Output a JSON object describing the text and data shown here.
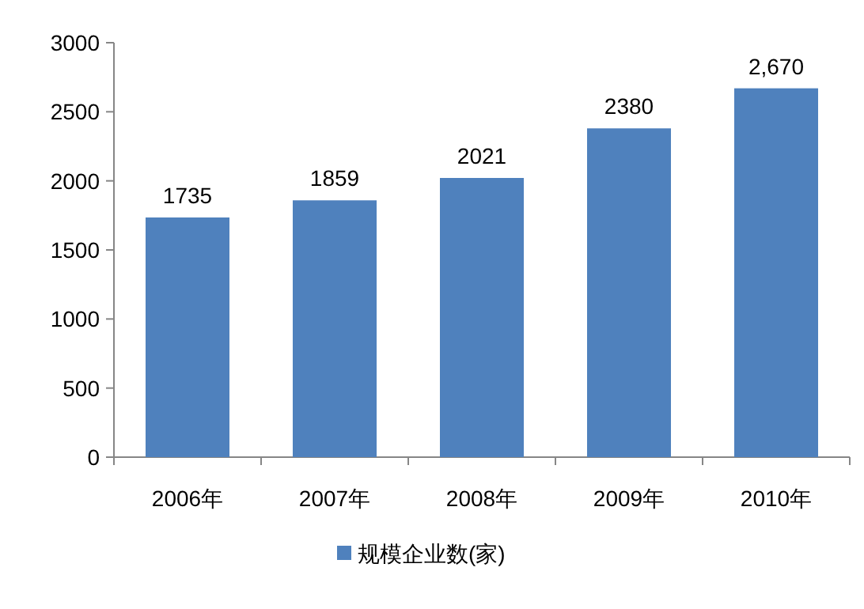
{
  "chart_data": {
    "type": "bar",
    "categories": [
      "2006年",
      "2007年",
      "2008年",
      "2009年",
      "2010年"
    ],
    "series": [
      {
        "name": "规模企业数(家)",
        "color": "#4f81bd",
        "values": [
          1735,
          1859,
          2021,
          2380,
          2670
        ],
        "value_labels": [
          "1735",
          "1859",
          "2021",
          "2380",
          "2,670"
        ]
      }
    ],
    "ylim": [
      0,
      3000
    ],
    "yticks": [
      0,
      500,
      1000,
      1500,
      2000,
      2500,
      3000
    ],
    "legend": "bottom",
    "grid": false
  }
}
